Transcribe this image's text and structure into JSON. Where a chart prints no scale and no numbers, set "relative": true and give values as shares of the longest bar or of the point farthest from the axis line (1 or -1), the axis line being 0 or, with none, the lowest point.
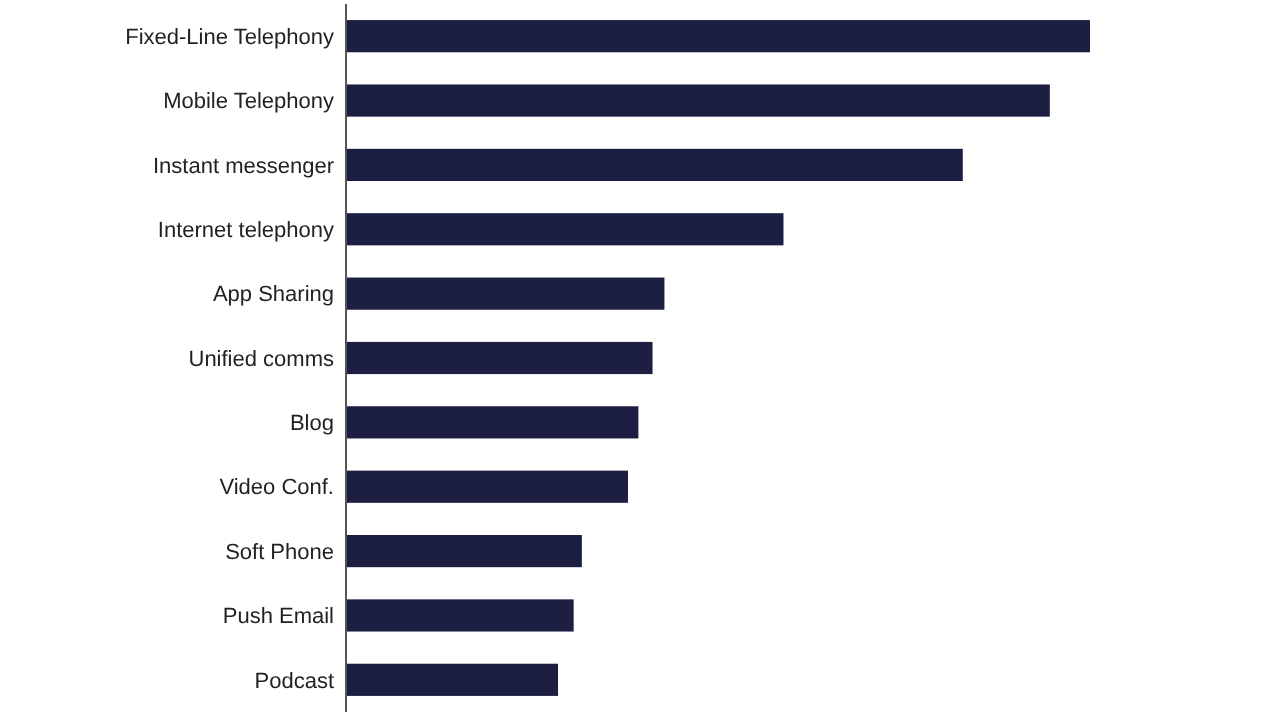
{
  "chart_data": {
    "type": "bar",
    "orientation": "horizontal",
    "relative": true,
    "color": "#1c1f42",
    "categories": [
      "Fixed-Line Telephony",
      "Mobile Telephony",
      "Instant messenger",
      "Internet telephony",
      "App Sharing",
      "Unified comms",
      "Blog",
      "Video Conf.",
      "Soft Phone",
      "Push Email",
      "Podcast"
    ],
    "values": [
      1,
      0.946,
      0.829,
      0.588,
      0.428,
      0.412,
      0.393,
      0.379,
      0.317,
      0.306,
      0.285
    ]
  }
}
